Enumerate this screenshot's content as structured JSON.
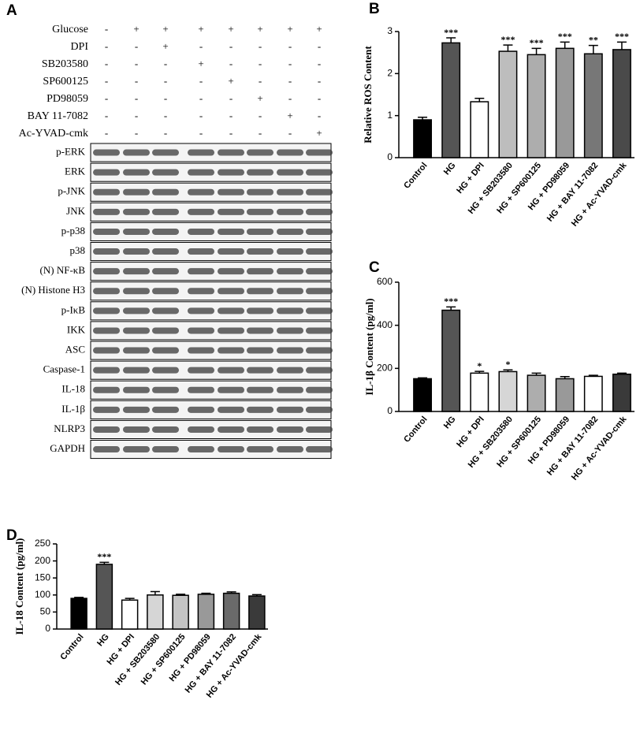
{
  "blot": {
    "panel": "A",
    "treatments": [
      {
        "name": "Glucose",
        "signs": [
          "-",
          "+",
          "+",
          "+",
          "+",
          "+",
          "+",
          "+"
        ]
      },
      {
        "name": "DPI",
        "signs": [
          "-",
          "-",
          "+",
          "-",
          "-",
          "-",
          "-",
          "-"
        ]
      },
      {
        "name": "SB203580",
        "signs": [
          "-",
          "-",
          "-",
          "+",
          "-",
          "-",
          "-",
          "-"
        ]
      },
      {
        "name": "SP600125",
        "signs": [
          "-",
          "-",
          "-",
          "-",
          "+",
          "-",
          "-",
          "-"
        ]
      },
      {
        "name": "PD98059",
        "signs": [
          "-",
          "-",
          "-",
          "-",
          "-",
          "+",
          "-",
          "-"
        ]
      },
      {
        "name": "BAY 11-7082",
        "signs": [
          "-",
          "-",
          "-",
          "-",
          "-",
          "-",
          "+",
          "-"
        ]
      },
      {
        "name": "Ac-YVAD-cmk",
        "signs": [
          "-",
          "-",
          "-",
          "-",
          "-",
          "-",
          "-",
          "+"
        ]
      }
    ],
    "proteins": [
      "p-ERK",
      "ERK",
      "p-JNK",
      "JNK",
      "p-p38",
      "p38",
      "(N) NF-κB",
      "(N) Histone H3",
      "p-IκB",
      "IKK",
      "ASC",
      "Caspase-1",
      "IL-18",
      "IL-1β",
      "NLRP3",
      "GAPDH"
    ]
  },
  "chart_data": [
    {
      "type": "bar",
      "panel": "B",
      "y_label": "Relative ROS Content",
      "categories": [
        "Control",
        "HG",
        "HG + DPI",
        "HG + SB203580",
        "HG + SP600125",
        "HG + PD98059",
        "HG + BAY 11-7082",
        "HG + Ac-YVAD-cmk"
      ],
      "values": [
        0.9,
        2.73,
        1.33,
        2.53,
        2.45,
        2.6,
        2.47,
        2.57
      ],
      "errors": [
        0.06,
        0.12,
        0.08,
        0.15,
        0.15,
        0.15,
        0.2,
        0.18
      ],
      "annotations": [
        null,
        "***",
        null,
        "***",
        "***",
        "***",
        "**",
        "***"
      ],
      "colors": [
        "#000000",
        "#555555",
        "#ffffff",
        "#bdbdbd",
        "#adadad",
        "#999999",
        "#777777",
        "#4a4a4a"
      ],
      "ylim": [
        0,
        3
      ],
      "yticks": [
        0,
        1,
        2,
        3
      ]
    },
    {
      "type": "bar",
      "panel": "C",
      "y_label": "IL-1β Content (pg/ml)",
      "categories": [
        "Control",
        "HG",
        "HG + DPI",
        "HG + SB203580",
        "HG + SP600125",
        "HG + PD98059",
        "HG + BAY 11-7082",
        "HG + Ac-YVAD-cmk"
      ],
      "values": [
        152,
        470,
        178,
        185,
        168,
        152,
        163,
        173
      ],
      "errors": [
        4,
        15,
        8,
        8,
        10,
        10,
        5,
        5
      ],
      "annotations": [
        null,
        "***",
        "*",
        "*",
        null,
        null,
        null,
        null
      ],
      "colors": [
        "#000000",
        "#555555",
        "#ffffff",
        "#d6d6d6",
        "#adadad",
        "#999999",
        "#ffffff",
        "#3a3a3a"
      ],
      "ylim": [
        0,
        600
      ],
      "yticks": [
        0,
        200,
        400,
        600
      ]
    },
    {
      "type": "bar",
      "panel": "D",
      "y_label": "IL-18 Content (pg/ml)",
      "categories": [
        "Control",
        "HG",
        "HG + DPI",
        "HG + SB203580",
        "HG + SP600125",
        "HG + PD98059",
        "HG + BAY 11-7082",
        "HG + Ac-YVAD-cmk"
      ],
      "values": [
        90,
        190,
        85,
        100,
        99,
        102,
        105,
        97
      ],
      "errors": [
        3,
        6,
        5,
        10,
        3,
        3,
        4,
        4
      ],
      "annotations": [
        null,
        "***",
        null,
        null,
        null,
        null,
        null,
        null
      ],
      "colors": [
        "#000000",
        "#555555",
        "#ffffff",
        "#d6d6d6",
        "#c4c4c4",
        "#999999",
        "#6a6a6a",
        "#3a3a3a"
      ],
      "ylim": [
        0,
        250
      ],
      "yticks": [
        0,
        50,
        100,
        150,
        200,
        250
      ]
    }
  ]
}
